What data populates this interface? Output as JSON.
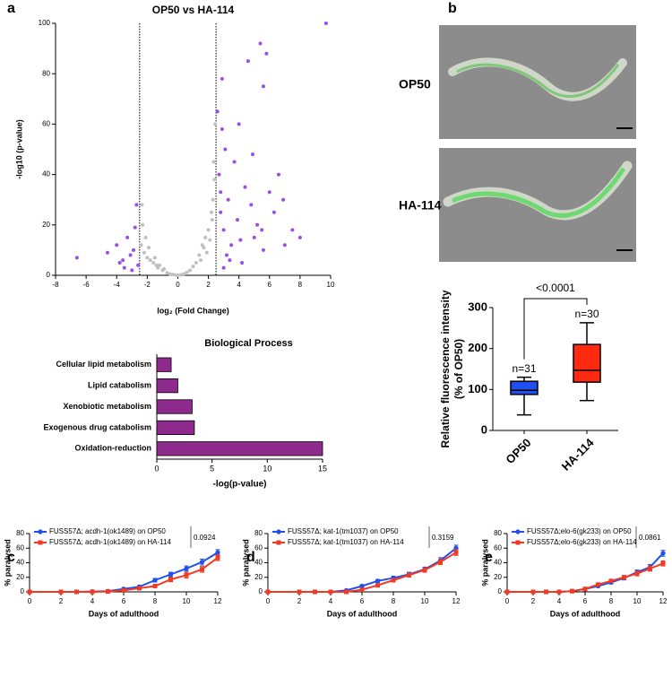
{
  "panel_labels": [
    "a",
    "b",
    "c",
    "d",
    "e"
  ],
  "images": {
    "labels": [
      "OP50",
      "HA-114"
    ]
  },
  "chart_data": [
    {
      "type": "scatter",
      "title": "OP50 vs HA-114",
      "xlabel": "log₂ (Fold Change)",
      "ylabel": "-log10 (p-value)",
      "xlim": [
        -8,
        10
      ],
      "xticks": [
        -8,
        -6,
        -4,
        -2,
        0,
        2,
        4,
        6,
        8,
        10
      ],
      "ylim": [
        0,
        100
      ],
      "yticks": [
        0,
        20,
        40,
        60,
        80,
        100
      ],
      "vlines": [
        -2.5,
        2.5
      ],
      "series": [
        {
          "color": "#c0c0c0",
          "x": [
            -2.4,
            -2.3,
            -2.2,
            -2.1,
            -2.0,
            -1.9,
            -1.8,
            -1.6,
            -1.5,
            -1.3,
            -1.2,
            -1.0,
            -0.9,
            -0.7,
            -0.5,
            -0.3,
            -0.1,
            0.0,
            0.2,
            0.4,
            0.6,
            0.8,
            1.0,
            1.2,
            1.4,
            1.5,
            1.7,
            1.8,
            1.9,
            2.0,
            2.1,
            2.2,
            2.3,
            2.35,
            2.4,
            2.45,
            -2.35,
            1.6,
            -1.4,
            2.25
          ],
          "values": [
            12,
            20,
            9,
            15,
            7,
            11,
            6,
            5,
            7,
            3,
            4,
            2,
            2.5,
            1,
            0.5,
            0.3,
            0.1,
            0,
            0.2,
            0.6,
            1.2,
            2,
            3.5,
            5,
            8,
            6,
            11,
            15,
            9,
            18,
            14,
            25,
            30,
            45,
            38,
            60,
            28,
            12,
            4,
            22
          ]
        },
        {
          "color": "#9b4de8",
          "x": [
            -6.6,
            -4.6,
            -4.0,
            -3.8,
            -3.5,
            -3.3,
            -3.1,
            -2.9,
            -2.7,
            -2.6,
            -2.8,
            -3.0,
            -3.6,
            2.6,
            2.7,
            2.8,
            2.9,
            3.0,
            3.1,
            3.2,
            3.3,
            3.5,
            3.7,
            3.9,
            4.0,
            4.2,
            4.4,
            4.6,
            4.8,
            5.0,
            5.2,
            5.4,
            5.6,
            5.8,
            6.0,
            6.3,
            6.6,
            7.0,
            7.5,
            8.0,
            9.7,
            5.6,
            3.0,
            2.9,
            4.1,
            6.9,
            3.4,
            2.8,
            4.9,
            5.5
          ],
          "values": [
            7,
            9,
            12,
            5,
            3,
            15,
            8,
            10,
            28,
            4,
            19,
            2,
            6,
            65,
            40,
            25,
            58,
            18,
            50,
            8,
            30,
            12,
            45,
            22,
            60,
            5,
            35,
            85,
            28,
            15,
            20,
            92,
            10,
            88,
            33,
            25,
            40,
            12,
            18,
            15,
            100,
            75,
            3,
            78,
            14,
            30,
            6,
            33,
            48,
            18
          ]
        }
      ]
    },
    {
      "type": "barh",
      "title": "Biological Process",
      "xlabel": "-log(p-value)",
      "categories": [
        "Cellular lipid metabolism",
        "Lipid catabolism",
        "Xenobiotic metabolism",
        "Exogenous drug catabolism",
        "Oxidation-reduction"
      ],
      "values": [
        1.3,
        1.9,
        3.2,
        3.4,
        15
      ],
      "color": "#8e2a8e",
      "xlim": [
        0,
        15
      ],
      "xticks": [
        0,
        5,
        10,
        15
      ]
    },
    {
      "type": "box",
      "ylabel": [
        "Relative fluorescence intensity",
        "(% of OP50)"
      ],
      "annotation": "<0.0001",
      "categories": [
        "OP50",
        "HA-114"
      ],
      "ylim": [
        0,
        300
      ],
      "yticks": [
        0,
        100,
        200,
        300
      ],
      "boxes": [
        {
          "min": 38,
          "q1": 88,
          "median": 98,
          "q3": 120,
          "max": 130,
          "color": "#1f4ff0"
        },
        {
          "min": 73,
          "q1": 118,
          "median": 147,
          "q3": 210,
          "max": 263,
          "color": "#ff2a10"
        }
      ],
      "n_labels": [
        "n=31",
        "n=30"
      ]
    },
    {
      "type": "line",
      "xlabel": "Days of adulthood",
      "ylabel": "% paralysed",
      "p_value": 0.0924,
      "x": [
        0,
        2,
        3,
        4,
        5,
        6,
        7,
        8,
        9,
        10,
        11,
        12
      ],
      "xlim": [
        0,
        12
      ],
      "xticks": [
        0,
        2,
        4,
        6,
        8,
        10,
        12
      ],
      "ylim": [
        0,
        80
      ],
      "yticks": [
        0,
        20,
        40,
        60,
        80
      ],
      "series": [
        {
          "name": "FUSS57Δ; acdh-1(ok1489) on OP50",
          "color": "#1f4ff0",
          "values": [
            0,
            0,
            0,
            0.5,
            1,
            4,
            7,
            16,
            24,
            32,
            41,
            54
          ],
          "errors": [
            0,
            0,
            0,
            0.5,
            1,
            1.5,
            2,
            2.5,
            3,
            3.5,
            4,
            4
          ]
        },
        {
          "name": "FUSS57Δ; acdh-1(ok1489) on HA-114",
          "color": "#f03a24",
          "values": [
            0,
            0,
            0,
            0,
            0.5,
            2,
            5,
            8,
            17,
            23,
            31,
            47
          ],
          "errors": [
            0,
            0,
            0,
            0,
            0.5,
            1,
            1.5,
            2,
            3,
            4,
            4,
            4
          ]
        }
      ]
    },
    {
      "type": "line",
      "xlabel": "Days of adulthood",
      "ylabel": "% paralysed",
      "p_value": 0.3159,
      "x": [
        0,
        2,
        3,
        4,
        5,
        6,
        7,
        8,
        9,
        10,
        11,
        12
      ],
      "xlim": [
        0,
        12
      ],
      "xticks": [
        0,
        2,
        4,
        6,
        8,
        10,
        12
      ],
      "ylim": [
        0,
        80
      ],
      "yticks": [
        0,
        20,
        40,
        60,
        80
      ],
      "series": [
        {
          "name": "FUSS57Δ; kat-1(tm1037) on OP50",
          "color": "#1f4ff0",
          "values": [
            0,
            0,
            0,
            0,
            2,
            8,
            15,
            19,
            24,
            31,
            43,
            60
          ],
          "errors": [
            0,
            0,
            0,
            0,
            1,
            1.5,
            2,
            2.5,
            3,
            3,
            4,
            4
          ]
        },
        {
          "name": "FUSS57Δ; kat-1(tm1037) on HA-114",
          "color": "#f03a24",
          "values": [
            0,
            0,
            0,
            0,
            0,
            3,
            9,
            16,
            23,
            30,
            41,
            54
          ],
          "errors": [
            0,
            0,
            0,
            0,
            0,
            1,
            1.5,
            2,
            2.5,
            3,
            3.5,
            4
          ]
        }
      ]
    },
    {
      "type": "line",
      "xlabel": "Days of adulthood",
      "ylabel": "% paralysed",
      "p_value": 0.0861,
      "x": [
        0,
        2,
        3,
        4,
        5,
        6,
        7,
        8,
        9,
        10,
        11,
        12
      ],
      "xlim": [
        0,
        12
      ],
      "xticks": [
        0,
        2,
        4,
        6,
        8,
        10,
        12
      ],
      "ylim": [
        0,
        80
      ],
      "yticks": [
        0,
        20,
        40,
        60,
        80
      ],
      "series": [
        {
          "name": "FUSS57Δ;elo-6(gk233) on OP50",
          "color": "#1f4ff0",
          "values": [
            0,
            0,
            0,
            0,
            1,
            4,
            8,
            13,
            19,
            27,
            34,
            53
          ],
          "errors": [
            0,
            0,
            0,
            0,
            0.5,
            1,
            1.5,
            2,
            2.5,
            3,
            3.5,
            4
          ]
        },
        {
          "name": "FUSS57Δ;elo-6(gk233) on HA-114",
          "color": "#f03a24",
          "values": [
            0,
            0,
            0,
            0,
            1,
            4,
            10,
            15,
            20,
            25,
            32,
            39
          ],
          "errors": [
            0,
            0,
            0,
            0,
            0.5,
            1,
            1.5,
            2,
            2.5,
            3,
            3.5,
            3.5
          ]
        }
      ]
    }
  ]
}
